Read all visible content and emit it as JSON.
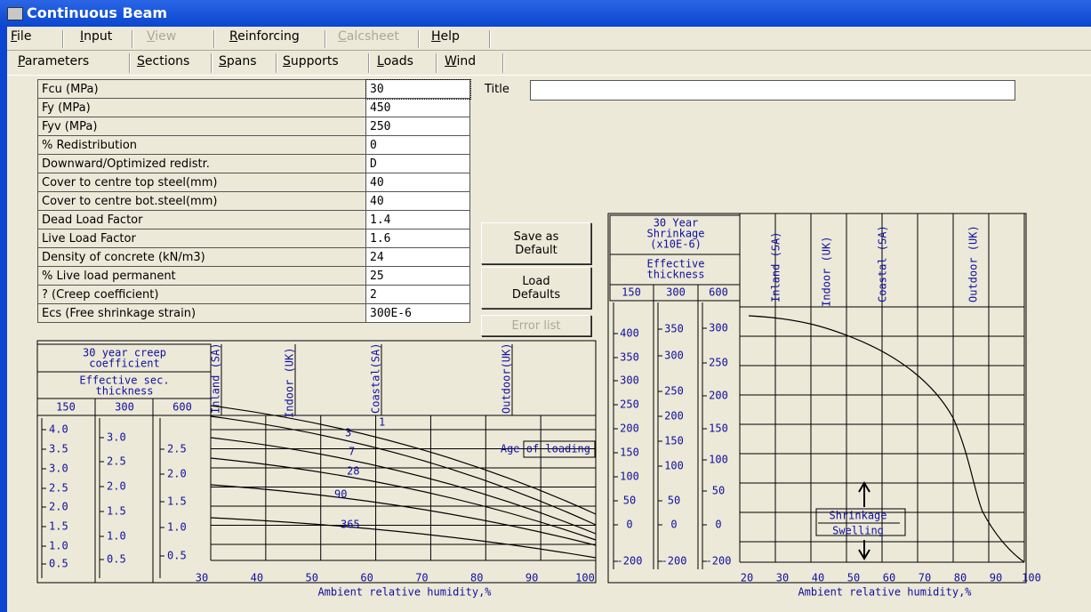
{
  "window": {
    "title": "Continuous Beam"
  },
  "menu": [
    "File",
    "Input",
    "View",
    "Reinforcing",
    "Calcsheet",
    "Help"
  ],
  "tabs": [
    "Parameters",
    "Sections",
    "Spans",
    "Supports",
    "Loads",
    "Wind"
  ],
  "parameters": [
    [
      "Fcu (MPa)",
      "30"
    ],
    [
      "Fy  (MPa)",
      "450"
    ],
    [
      "Fyv (MPa)",
      "250"
    ],
    [
      "% Redistribution",
      "0"
    ],
    [
      "Downward/Optimized redistr.",
      "D"
    ],
    [
      "Cover to centre top steel(mm)",
      "40"
    ],
    [
      "Cover to centre bot.steel(mm)",
      "40"
    ],
    [
      "Dead Load Factor",
      "1.4"
    ],
    [
      "Live Load Factor",
      "1.6"
    ],
    [
      "Density of concrete (kN/m3)",
      "24"
    ],
    [
      "% Live load permanent",
      "25"
    ],
    [
      "?  (Creep coefficient)",
      "2"
    ],
    [
      "Ecs (Free shrinkage strain)",
      "300E-6"
    ]
  ],
  "title_label": "Title",
  "buttons": [
    "Save as Default",
    "Load Defaults",
    "Error list"
  ],
  "creep_chart": {
    "header": [
      "30 year creep",
      "coefficient"
    ],
    "thickness_header": [
      "Effective sec.",
      "thickness"
    ],
    "columns": [
      "150",
      "300",
      "600"
    ],
    "scales": [
      [
        "4.0",
        "3.5",
        "3.0",
        "2.5",
        "2.0",
        "1.5",
        "1.0",
        "0.5"
      ],
      [
        "3.0",
        "2.5",
        "2.0",
        "1.5",
        "1.0",
        "0.5"
      ],
      [
        "2.5",
        "2.0",
        "1.5",
        "1.0",
        "0.5"
      ]
    ],
    "zones": [
      "Inland (SA)",
      "Indoor (UK)",
      "Coastal(SA)",
      "Outdoor(UK)"
    ],
    "ages": [
      "1",
      "3",
      "7",
      "28",
      "90",
      "365"
    ],
    "age_label": "Age of loading",
    "x_ticks": [
      "30",
      "40",
      "50",
      "60",
      "70",
      "80",
      "90",
      "100"
    ],
    "x_label": "Ambient relative humidity,%"
  },
  "shrinkage_chart": {
    "header": [
      "30 Year",
      "Shrinkage",
      "(x10E-6)"
    ],
    "thickness_header": [
      "Effective",
      "thickness"
    ],
    "columns": [
      "150",
      "300",
      "600"
    ],
    "scales": [
      [
        "400",
        "350",
        "300",
        "250",
        "200",
        "150",
        "100",
        "50",
        "0",
        "-200"
      ],
      [
        "350",
        "300",
        "250",
        "200",
        "150",
        "100",
        "50",
        "0",
        "-200"
      ],
      [
        "300",
        "250",
        "200",
        "150",
        "100",
        "50",
        "0",
        "-200"
      ]
    ],
    "zones": [
      "Inland (SA)",
      "Indoor (UK)",
      "Coastal (SA)",
      "Outdoor (UK)"
    ],
    "shrinkage": "Shrinkage",
    "swelling": "Swelling",
    "x_ticks": [
      "20",
      "30",
      "40",
      "50",
      "60",
      "70",
      "80",
      "90",
      "100"
    ],
    "x_label": "Ambient relative humidity,%"
  }
}
